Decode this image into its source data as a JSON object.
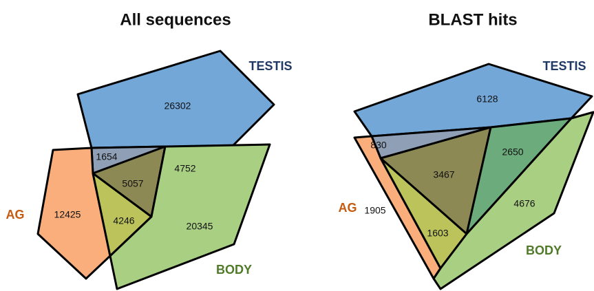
{
  "panels": [
    {
      "title": "All sequences",
      "sets": [
        "TESTIS",
        "AG",
        "BODY"
      ],
      "regions": [
        26302,
        1654,
        5057,
        4752,
        12425,
        4246,
        20345
      ]
    },
    {
      "title": "BLAST hits",
      "sets": [
        "TESTIS",
        "AG",
        "BODY"
      ],
      "regions": [
        6128,
        830,
        3467,
        2650,
        1905,
        1603,
        4676
      ]
    }
  ]
}
